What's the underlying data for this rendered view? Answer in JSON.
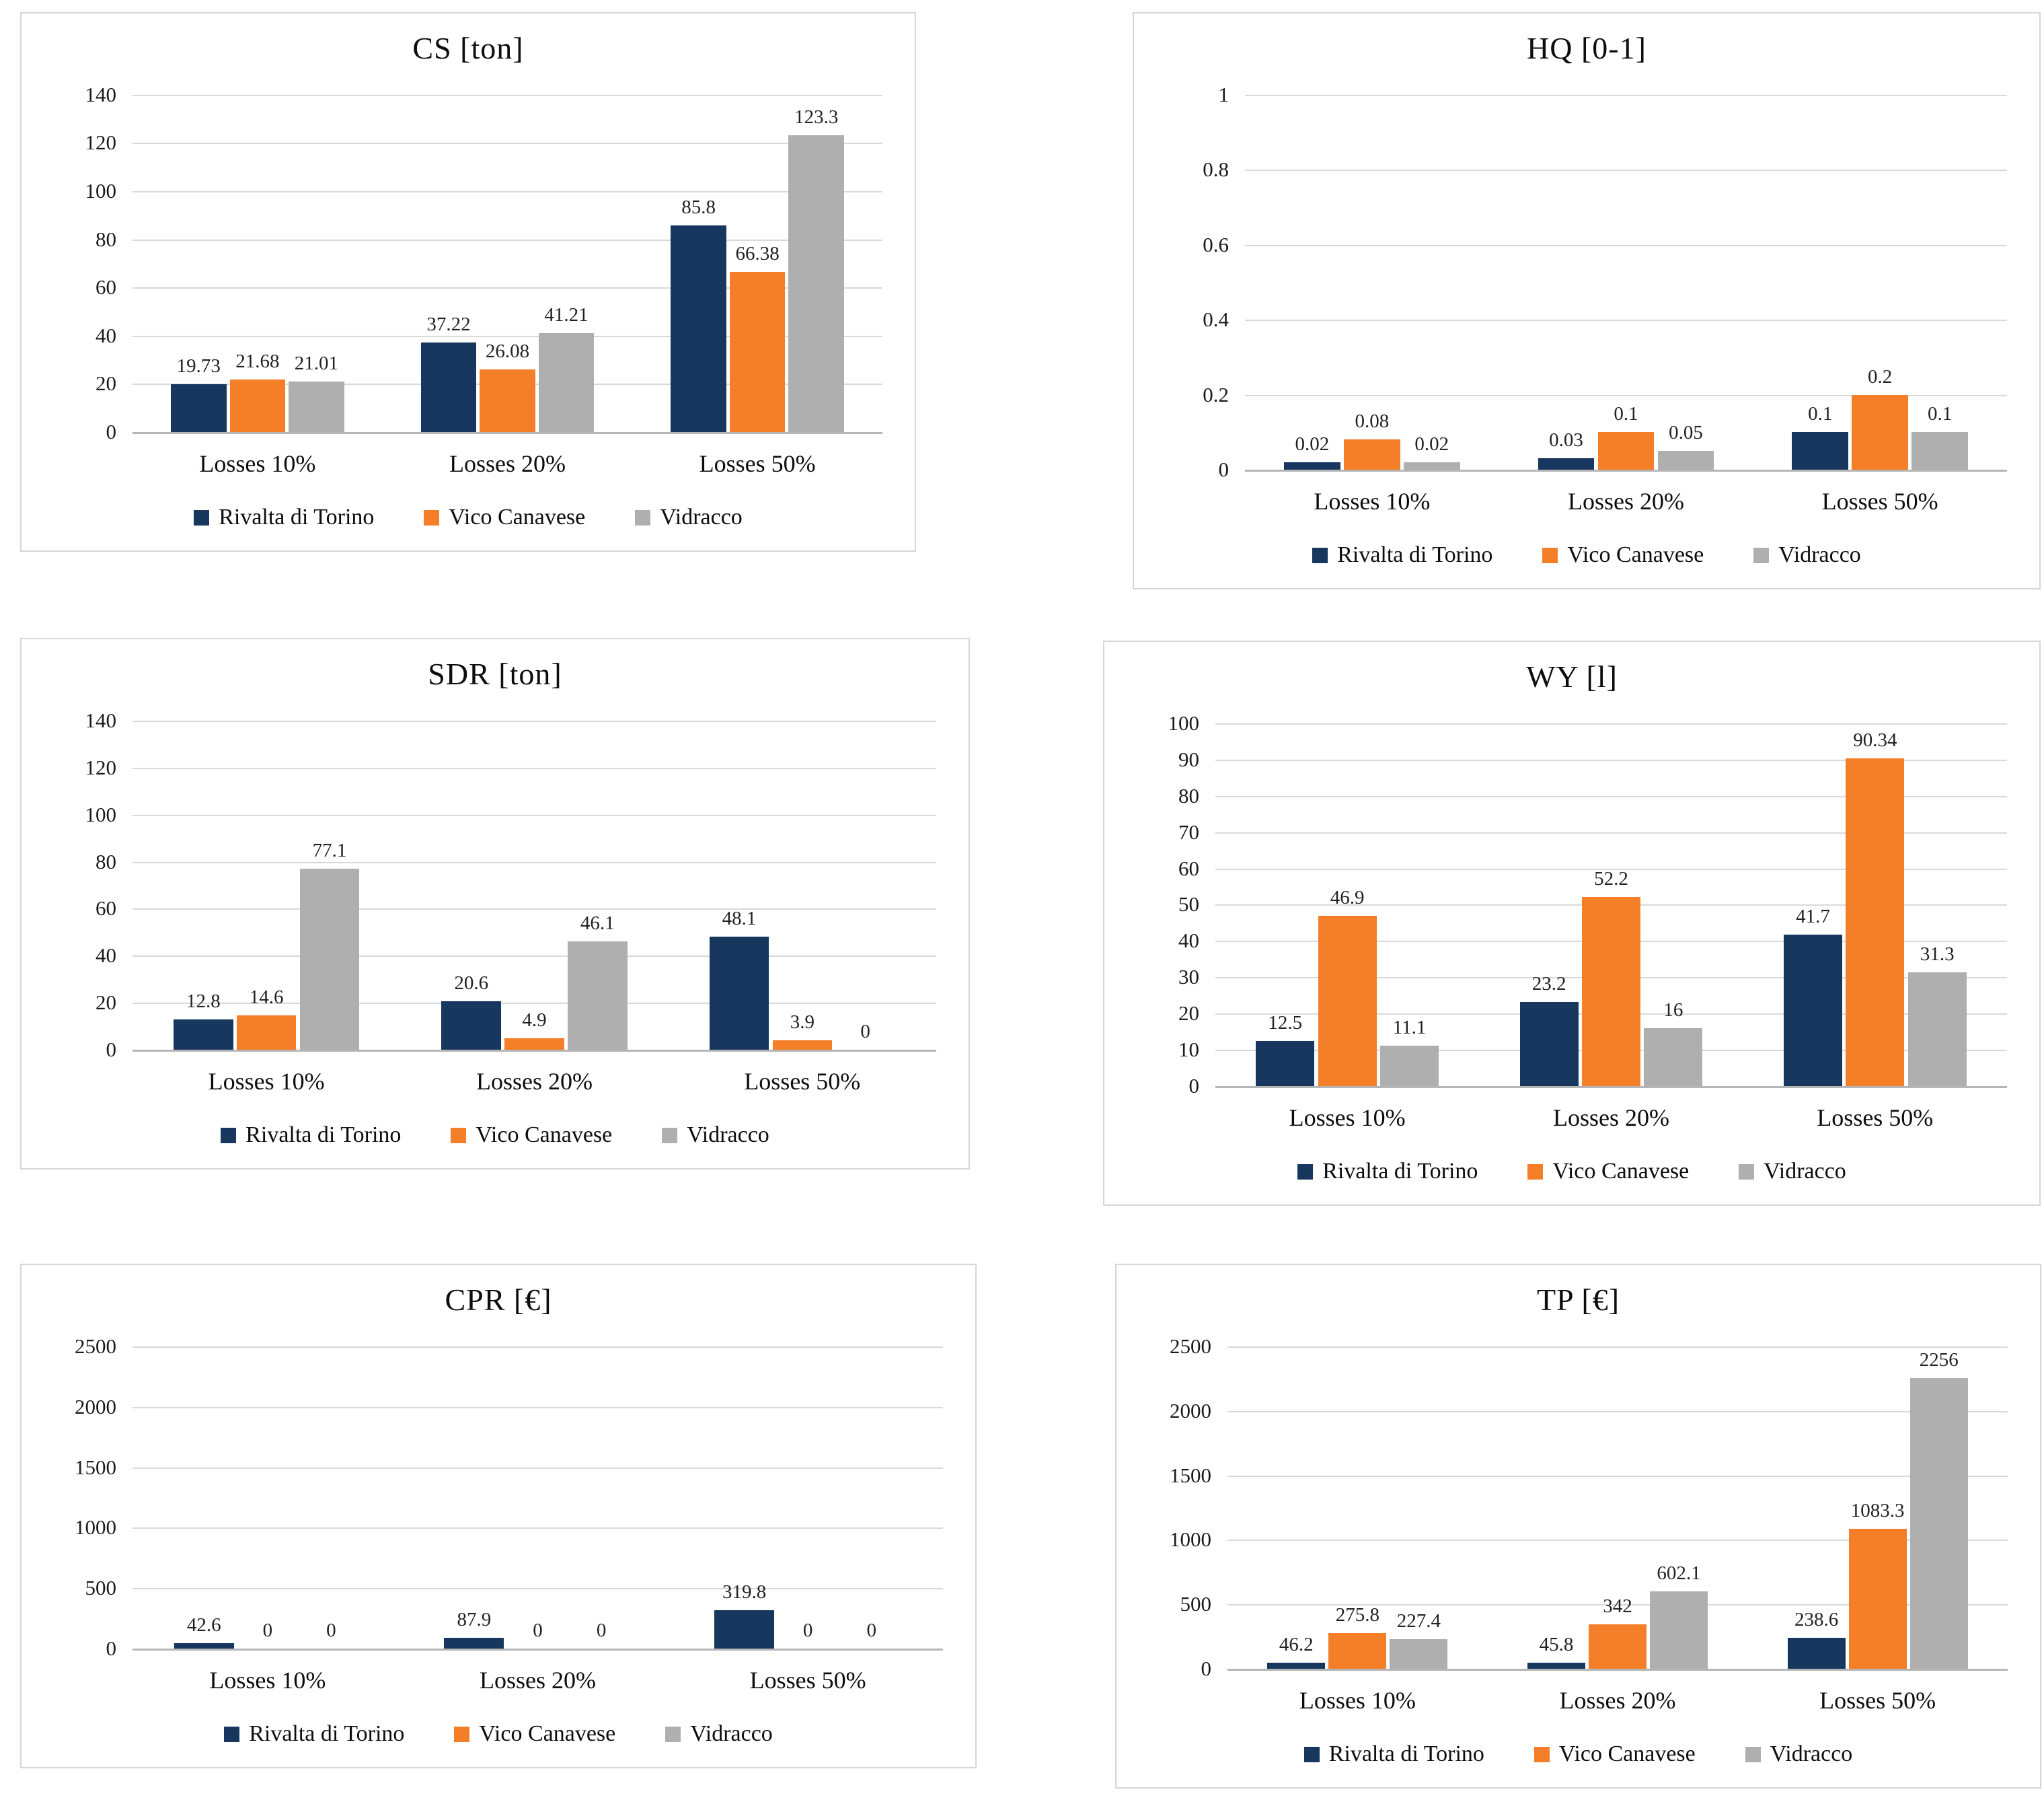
{
  "page_background": "#ffffff",
  "series_colors": [
    "#17375E",
    "#F57E28",
    "#AFAFAF"
  ],
  "grid_color": "#d9d9d9",
  "categories": [
    "Losses 10%",
    "Losses 20%",
    "Losses 50%"
  ],
  "series_names": [
    "Rivalta di Torino",
    "Vico Canavese",
    "Vidracco"
  ],
  "chart_data": [
    {
      "type": "bar",
      "title": "CS [ton]",
      "categories": [
        "Losses 10%",
        "Losses 20%",
        "Losses 50%"
      ],
      "series": [
        {
          "name": "Rivalta di Torino",
          "values": [
            19.73,
            37.22,
            85.8
          ]
        },
        {
          "name": "Vico Canavese",
          "values": [
            21.68,
            26.08,
            66.38
          ]
        },
        {
          "name": "Vidracco",
          "values": [
            21.01,
            41.21,
            123.3
          ]
        }
      ],
      "ylim": [
        0,
        140
      ],
      "yticks": [
        140,
        120,
        100,
        80,
        60,
        40,
        20,
        0
      ],
      "grid": true,
      "legend_position": "bottom"
    },
    {
      "type": "bar",
      "title": "HQ [0-1]",
      "categories": [
        "Losses 10%",
        "Losses 20%",
        "Losses 50%"
      ],
      "series": [
        {
          "name": "Rivalta di Torino",
          "values": [
            0.02,
            0.03,
            0.1
          ]
        },
        {
          "name": "Vico Canavese",
          "values": [
            0.08,
            0.1,
            0.2
          ]
        },
        {
          "name": "Vidracco",
          "values": [
            0.02,
            0.05,
            0.1
          ]
        }
      ],
      "ylim": [
        0,
        1
      ],
      "yticks": [
        1,
        0.8,
        0.6,
        0.4,
        0.2,
        0
      ],
      "grid": true,
      "legend_position": "bottom"
    },
    {
      "type": "bar",
      "title": "SDR [ton]",
      "categories": [
        "Losses 10%",
        "Losses 20%",
        "Losses 50%"
      ],
      "series": [
        {
          "name": "Rivalta di Torino",
          "values": [
            12.8,
            20.6,
            48.1
          ]
        },
        {
          "name": "Vico Canavese",
          "values": [
            14.6,
            4.9,
            3.9
          ]
        },
        {
          "name": "Vidracco",
          "values": [
            77.1,
            46.1,
            0
          ]
        }
      ],
      "ylim": [
        0,
        140
      ],
      "yticks": [
        140,
        120,
        100,
        80,
        60,
        40,
        20,
        0
      ],
      "grid": true,
      "legend_position": "bottom"
    },
    {
      "type": "bar",
      "title": "WY [l]",
      "categories": [
        "Losses 10%",
        "Losses 20%",
        "Losses 50%"
      ],
      "series": [
        {
          "name": "Rivalta di Torino",
          "values": [
            12.5,
            23.2,
            41.7
          ]
        },
        {
          "name": "Vico Canavese",
          "values": [
            46.9,
            52.2,
            90.34
          ]
        },
        {
          "name": "Vidracco",
          "values": [
            11.1,
            16,
            31.3
          ]
        }
      ],
      "ylim": [
        0,
        100
      ],
      "yticks": [
        100,
        90,
        80,
        70,
        60,
        50,
        40,
        30,
        20,
        10,
        0
      ],
      "grid": true,
      "legend_position": "bottom"
    },
    {
      "type": "bar",
      "title": "CPR [€]",
      "categories": [
        "Losses 10%",
        "Losses 20%",
        "Losses 50%"
      ],
      "series": [
        {
          "name": "Rivalta di Torino",
          "values": [
            42.6,
            87.9,
            319.8
          ]
        },
        {
          "name": "Vico Canavese",
          "values": [
            0,
            0,
            0
          ]
        },
        {
          "name": "Vidracco",
          "values": [
            0,
            0,
            0
          ]
        }
      ],
      "ylim": [
        0,
        2500
      ],
      "yticks": [
        2500,
        2000,
        1500,
        1000,
        500,
        0
      ],
      "grid": true,
      "legend_position": "bottom"
    },
    {
      "type": "bar",
      "title": "TP [€]",
      "categories": [
        "Losses 10%",
        "Losses 20%",
        "Losses 50%"
      ],
      "series": [
        {
          "name": "Rivalta di Torino",
          "values": [
            46.2,
            45.8,
            238.6
          ]
        },
        {
          "name": "Vico Canavese",
          "values": [
            275.8,
            342,
            1083.3
          ]
        },
        {
          "name": "Vidracco",
          "values": [
            227.4,
            602.1,
            2256
          ]
        }
      ],
      "ylim": [
        0,
        2500
      ],
      "yticks": [
        2500,
        2000,
        1500,
        1000,
        500,
        0
      ],
      "grid": true,
      "legend_position": "bottom"
    }
  ]
}
